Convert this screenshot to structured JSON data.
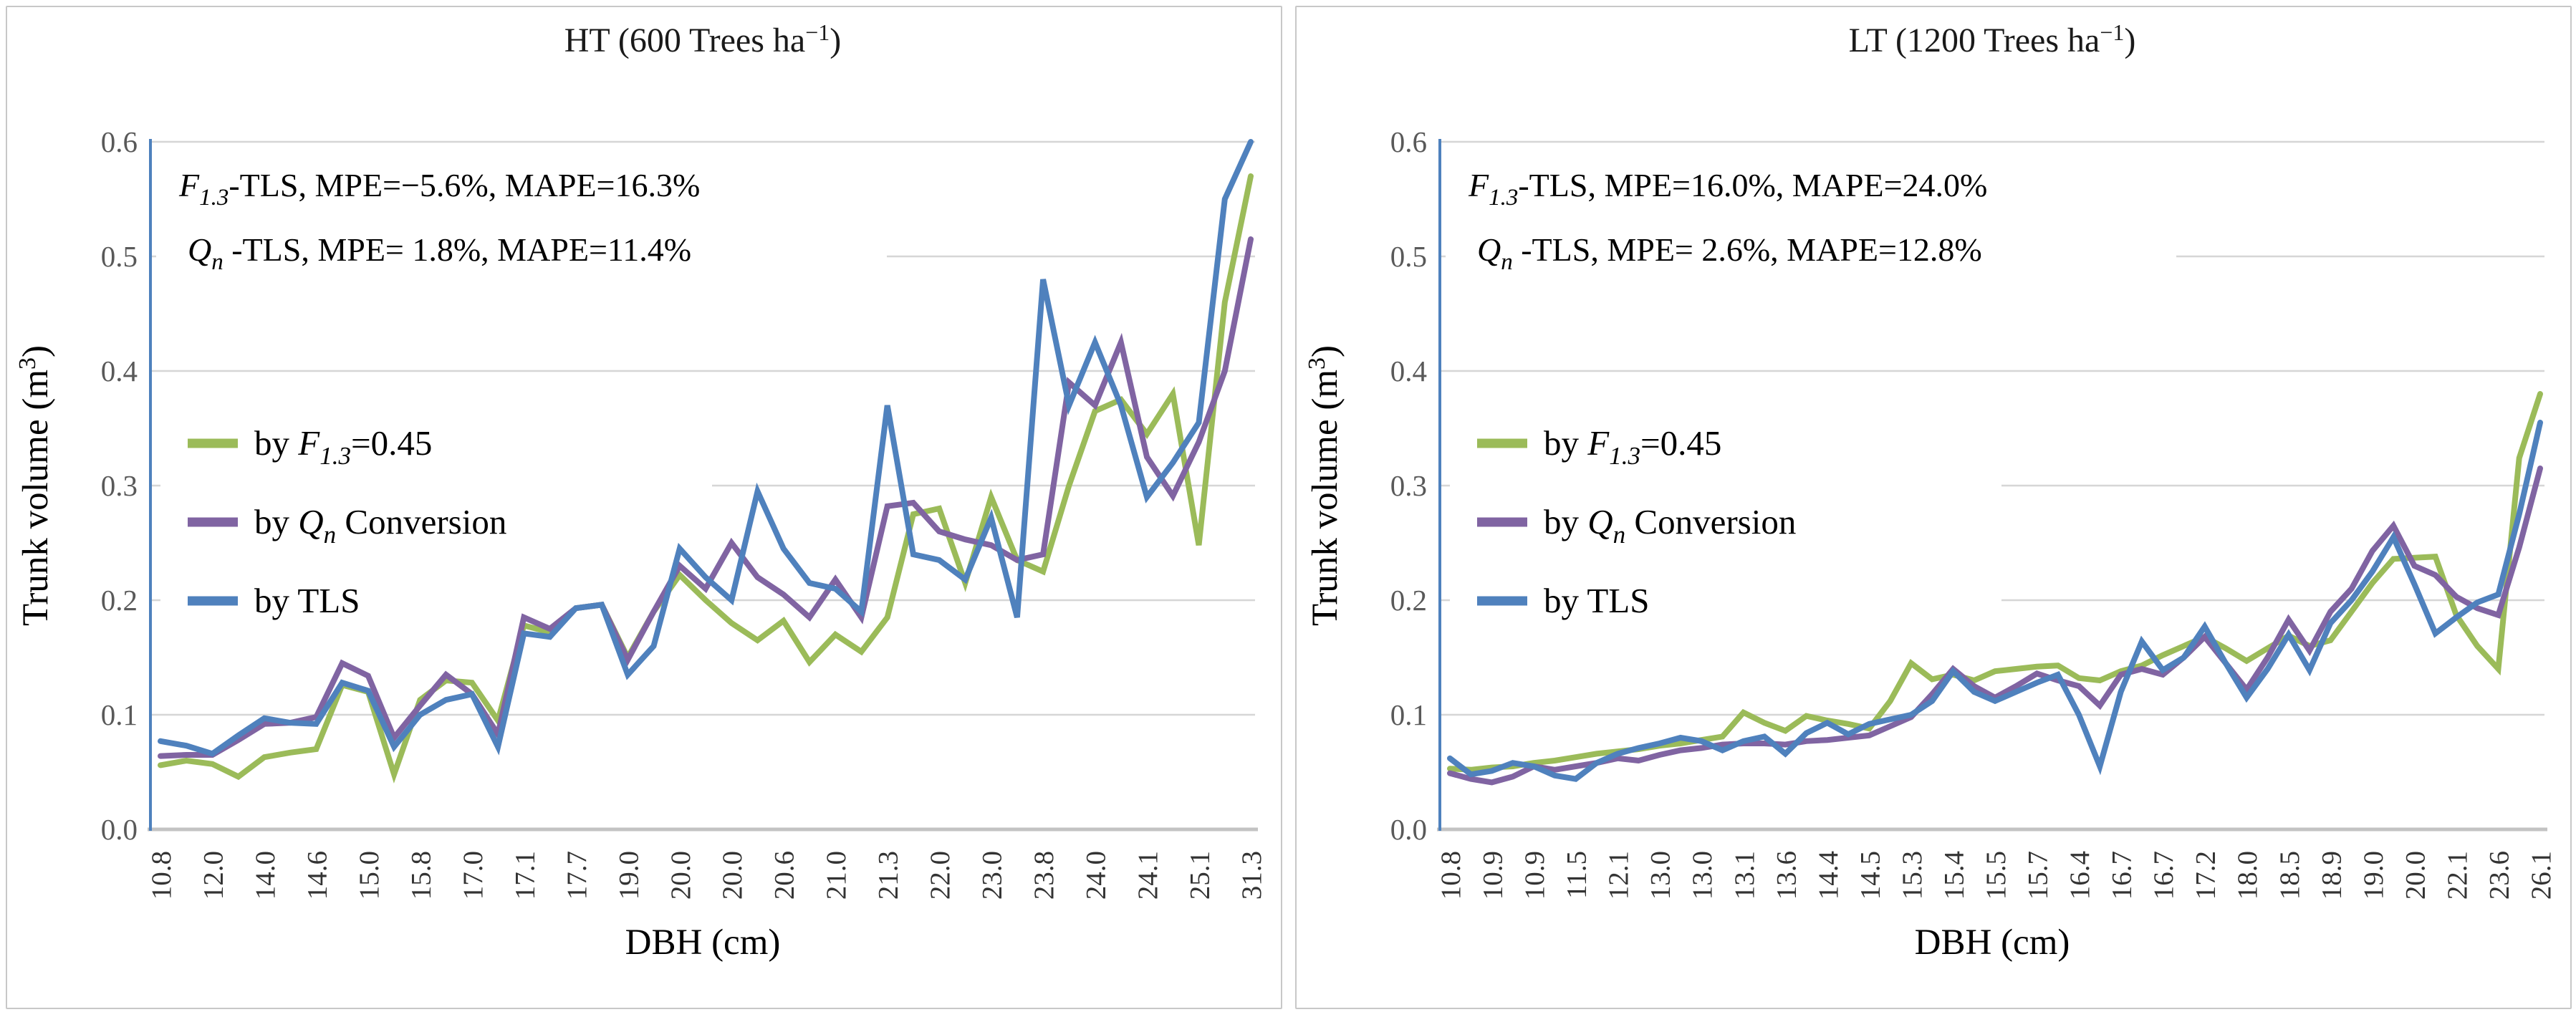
{
  "figure": {
    "y_axis": {
      "title_pre": "Trunk volume (m",
      "title_sup": "3",
      "title_post": ")",
      "ticks": [
        "0.0",
        "0.1",
        "0.2",
        "0.3",
        "0.4",
        "0.5",
        "0.6"
      ]
    },
    "x_axis": {
      "title": "DBH (cm)"
    },
    "legend": [
      {
        "pre": "by ",
        "sym": "F",
        "sub": "1.3",
        "post": "=0.45",
        "series_key": "f13"
      },
      {
        "pre": "by ",
        "sym": "Q",
        "sub": "n",
        "post": " Conversion",
        "series_key": "qn"
      },
      {
        "pre": "by TLS",
        "sym": "",
        "sub": "",
        "post": "",
        "series_key": "tls"
      }
    ],
    "colors": {
      "f13": "#9BBB59",
      "qn": "#8064A2",
      "tls": "#4F81BD",
      "axis_line": "#4E81BD",
      "grid": "#D6D6D6",
      "baseline": "#C3C3C3",
      "tick_text": "#595959",
      "cat_text": "#333333"
    }
  },
  "chart_data": [
    {
      "type": "line",
      "title": {
        "pre": "HT (600 Trees ha",
        "sup": "−1",
        "post": ")"
      },
      "annotations": [
        {
          "sym": "F",
          "sub": "1.3",
          "rest": "-TLS, MPE=−5.6%, MAPE=16.3%"
        },
        {
          "sym": "Q",
          "sub": "n",
          "rest": " -TLS, MPE= 1.8%, MAPE=11.4%"
        }
      ],
      "xlabel": "DBH (cm)",
      "ylabel": "Trunk volume (m3)",
      "ylim": [
        0.0,
        0.6
      ],
      "grid": true,
      "legend_position": "left-middle",
      "categories": [
        "10.8",
        "12.0",
        "14.0",
        "14.6",
        "15.0",
        "15.8",
        "17.0",
        "17.1",
        "17.7",
        "19.0",
        "20.0",
        "20.0",
        "20.6",
        "21.0",
        "21.3",
        "22.0",
        "23.0",
        "23.8",
        "24.0",
        "24.1",
        "25.1",
        "31.3"
      ],
      "points_per_label_gap": 2,
      "series": [
        {
          "name": "by F1.3=0.45",
          "key": "f13",
          "color": "#9BBB59",
          "values": [
            0.056,
            0.06,
            0.057,
            0.046,
            0.063,
            0.067,
            0.07,
            0.126,
            0.12,
            0.048,
            0.113,
            0.13,
            0.128,
            0.095,
            0.178,
            0.172,
            0.193,
            0.196,
            0.15,
            0.19,
            0.222,
            0.2,
            0.18,
            0.165,
            0.182,
            0.146,
            0.17,
            0.155,
            0.185,
            0.275,
            0.28,
            0.215,
            0.29,
            0.235,
            0.225,
            0.3,
            0.365,
            0.375,
            0.345,
            0.38,
            0.248,
            0.46,
            0.57
          ]
        },
        {
          "name": "by Qn Conversion",
          "key": "qn",
          "color": "#8064A2",
          "values": [
            0.064,
            0.065,
            0.065,
            0.078,
            0.092,
            0.093,
            0.098,
            0.145,
            0.134,
            0.08,
            0.108,
            0.135,
            0.118,
            0.083,
            0.185,
            0.175,
            0.193,
            0.196,
            0.148,
            0.19,
            0.23,
            0.21,
            0.25,
            0.22,
            0.205,
            0.185,
            0.218,
            0.185,
            0.282,
            0.285,
            0.26,
            0.253,
            0.248,
            0.235,
            0.24,
            0.39,
            0.37,
            0.425,
            0.325,
            0.291,
            0.338,
            0.4,
            0.515
          ]
        },
        {
          "name": "by TLS",
          "key": "tls",
          "color": "#4F81BD",
          "values": [
            0.077,
            0.073,
            0.066,
            0.082,
            0.097,
            0.093,
            0.092,
            0.128,
            0.121,
            0.072,
            0.1,
            0.113,
            0.118,
            0.072,
            0.171,
            0.168,
            0.193,
            0.196,
            0.135,
            0.16,
            0.245,
            0.22,
            0.2,
            0.295,
            0.245,
            0.215,
            0.21,
            0.19,
            0.37,
            0.24,
            0.235,
            0.218,
            0.272,
            0.185,
            0.48,
            0.37,
            0.425,
            0.37,
            0.29,
            0.32,
            0.355,
            0.55,
            0.6
          ]
        }
      ]
    },
    {
      "type": "line",
      "title": {
        "pre": "LT (1200 Trees ha",
        "sup": "−1",
        "post": ")"
      },
      "annotations": [
        {
          "sym": "F",
          "sub": "1.3",
          "rest": "-TLS, MPE=16.0%, MAPE=24.0%"
        },
        {
          "sym": "Q",
          "sub": "n",
          "rest": " -TLS, MPE= 2.6%, MAPE=12.8%"
        }
      ],
      "xlabel": "DBH (cm)",
      "ylabel": "Trunk volume (m3)",
      "ylim": [
        0.0,
        0.6
      ],
      "grid": true,
      "legend_position": "left-middle",
      "categories": [
        "10.8",
        "10.9",
        "10.9",
        "11.5",
        "12.1",
        "13.0",
        "13.0",
        "13.1",
        "13.6",
        "14.4",
        "14.5",
        "15.3",
        "15.4",
        "15.5",
        "15.7",
        "16.4",
        "16.7",
        "16.7",
        "17.2",
        "18.0",
        "18.5",
        "18.9",
        "19.0",
        "20.0",
        "22.1",
        "23.6",
        "26.1"
      ],
      "points_per_label_gap": 2,
      "series": [
        {
          "name": "by F1.3=0.45",
          "key": "f13",
          "color": "#9BBB59",
          "values": [
            0.053,
            0.052,
            0.054,
            0.055,
            0.058,
            0.06,
            0.063,
            0.066,
            0.068,
            0.07,
            0.073,
            0.075,
            0.078,
            0.081,
            0.102,
            0.093,
            0.086,
            0.099,
            0.095,
            0.092,
            0.088,
            0.112,
            0.145,
            0.131,
            0.135,
            0.13,
            0.138,
            0.14,
            0.142,
            0.143,
            0.132,
            0.13,
            0.138,
            0.143,
            0.152,
            0.16,
            0.168,
            0.158,
            0.147,
            0.158,
            0.169,
            0.16,
            0.165,
            0.19,
            0.215,
            0.236,
            0.237,
            0.238,
            0.187,
            0.16,
            0.14,
            0.324,
            0.38
          ]
        },
        {
          "name": "by Qn Conversion",
          "key": "qn",
          "color": "#8064A2",
          "values": [
            0.049,
            0.044,
            0.041,
            0.046,
            0.055,
            0.052,
            0.055,
            0.058,
            0.062,
            0.06,
            0.065,
            0.069,
            0.071,
            0.074,
            0.075,
            0.075,
            0.074,
            0.077,
            0.078,
            0.08,
            0.082,
            0.09,
            0.098,
            0.118,
            0.14,
            0.125,
            0.115,
            0.125,
            0.136,
            0.13,
            0.125,
            0.108,
            0.135,
            0.14,
            0.135,
            0.15,
            0.168,
            0.145,
            0.122,
            0.15,
            0.183,
            0.156,
            0.19,
            0.21,
            0.243,
            0.265,
            0.23,
            0.222,
            0.203,
            0.193,
            0.187,
            0.246,
            0.315
          ]
        },
        {
          "name": "by TLS",
          "key": "tls",
          "color": "#4F81BD",
          "values": [
            0.062,
            0.048,
            0.051,
            0.058,
            0.055,
            0.047,
            0.044,
            0.058,
            0.066,
            0.071,
            0.075,
            0.08,
            0.077,
            0.069,
            0.077,
            0.081,
            0.066,
            0.084,
            0.093,
            0.083,
            0.092,
            0.096,
            0.1,
            0.112,
            0.138,
            0.12,
            0.112,
            0.12,
            0.128,
            0.135,
            0.1,
            0.055,
            0.12,
            0.164,
            0.139,
            0.15,
            0.177,
            0.145,
            0.115,
            0.14,
            0.17,
            0.139,
            0.18,
            0.2,
            0.225,
            0.255,
            0.214,
            0.171,
            0.185,
            0.198,
            0.205,
            0.275,
            0.355
          ]
        }
      ]
    }
  ]
}
